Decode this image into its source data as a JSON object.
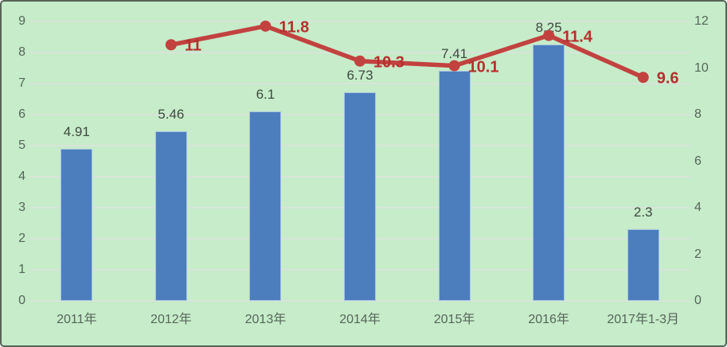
{
  "chart_data": {
    "type": "combo",
    "title": "",
    "categories": [
      "2011年",
      "2012年",
      "2013年",
      "2014年",
      "2015年",
      "2016年",
      "2017年1-3月"
    ],
    "series": [
      {
        "name": "bar-series",
        "type": "bar",
        "axis": "left",
        "values": [
          4.91,
          5.46,
          6.1,
          6.73,
          7.41,
          8.25,
          2.3
        ],
        "labels": [
          "4.91",
          "5.46",
          "6.1",
          "6.73",
          "7.41",
          "8.25",
          "2.3"
        ]
      },
      {
        "name": "line-series",
        "type": "line",
        "axis": "right",
        "values": [
          null,
          11,
          11.8,
          10.3,
          10.1,
          11.4,
          9.6
        ],
        "labels": [
          null,
          "11",
          "11.8",
          "10.3",
          "10.1",
          "11.4",
          "9.6"
        ]
      }
    ],
    "left_axis": {
      "min": 0,
      "max": 9,
      "step": 1,
      "ticks": [
        "0",
        "1",
        "2",
        "3",
        "4",
        "5",
        "6",
        "7",
        "8",
        "9"
      ]
    },
    "right_axis": {
      "min": 0,
      "max": 12,
      "step": 2,
      "ticks": [
        "0",
        "2",
        "4",
        "6",
        "8",
        "10",
        "12"
      ]
    },
    "grid": true,
    "legend": "none",
    "colors": {
      "background": "#c6ecc9",
      "frame_border": "#566458",
      "bar": "#4c7ebd",
      "line": "#c2423f",
      "marker": "#c2423f",
      "bar_label": "#3e4a41",
      "line_label": "#b5302c",
      "axis_label": "#57655c",
      "gridline": "#e7dfe5"
    }
  }
}
